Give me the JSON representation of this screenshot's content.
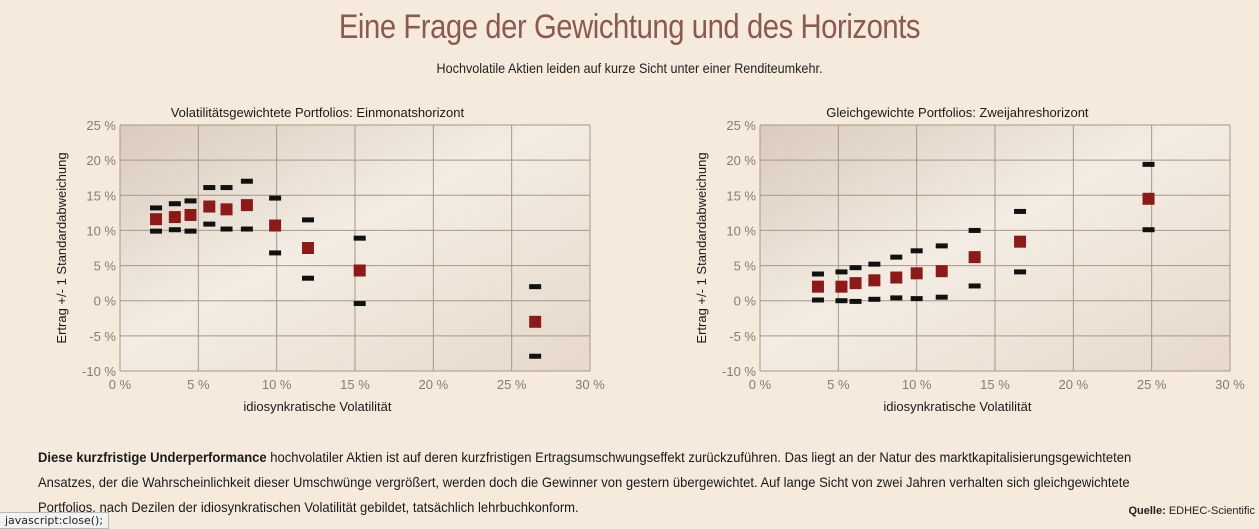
{
  "header": {
    "title": "Eine Frage der Gewichtung und des Horizonts",
    "subtitle": "Hochvolatile Aktien leiden auf kurze Sicht unter einer Renditeumkehr."
  },
  "colors": {
    "marker": "#8b1a1a",
    "whisker": "#111111",
    "title": "#8a5a52",
    "background": "#f6eadc"
  },
  "chart_data": [
    {
      "type": "scatter",
      "title": "Volatilitätsgewichtete Portfolios: Einmonatshorizont",
      "xlabel": "idiosynkratische Volatilität",
      "ylabel": "Ertrag +/- 1 Standardabweichung",
      "xlim": [
        0,
        30
      ],
      "ylim": [
        -10,
        25
      ],
      "xticks": [
        "0 %",
        "5 %",
        "10 %",
        "15 %",
        "20 %",
        "25 %",
        "30 %"
      ],
      "yticks": [
        "25 %",
        "20 %",
        "15 %",
        "10 %",
        "5 %",
        "0 %",
        "-5 %",
        "-10 %"
      ],
      "grid": true,
      "points": [
        {
          "x": 2.3,
          "y": 11.6,
          "low": 9.9,
          "high": 13.2
        },
        {
          "x": 3.5,
          "y": 11.9,
          "low": 10.1,
          "high": 13.8
        },
        {
          "x": 4.5,
          "y": 12.2,
          "low": 9.9,
          "high": 14.2
        },
        {
          "x": 5.7,
          "y": 13.4,
          "low": 10.9,
          "high": 16.1
        },
        {
          "x": 6.8,
          "y": 13.0,
          "low": 10.2,
          "high": 16.1
        },
        {
          "x": 8.1,
          "y": 13.6,
          "low": 10.2,
          "high": 17.0
        },
        {
          "x": 9.9,
          "y": 10.7,
          "low": 6.8,
          "high": 14.6
        },
        {
          "x": 12.0,
          "y": 7.5,
          "low": 3.2,
          "high": 11.5
        },
        {
          "x": 15.3,
          "y": 4.3,
          "low": -0.4,
          "high": 8.9
        },
        {
          "x": 26.5,
          "y": -3.0,
          "low": -7.9,
          "high": 2.0
        }
      ]
    },
    {
      "type": "scatter",
      "title": "Gleichgewichte Portfolios: Zweijahreshorizont",
      "xlabel": "idiosynkratische Volatilität",
      "ylabel": "Ertrag +/- 1 Standardabweichung",
      "xlim": [
        0,
        30
      ],
      "ylim": [
        -10,
        25
      ],
      "xticks": [
        "0 %",
        "5 %",
        "10 %",
        "15 %",
        "20 %",
        "25 %",
        "30 %"
      ],
      "yticks": [
        "25 %",
        "20 %",
        "15 %",
        "10 %",
        "5 %",
        "0 %",
        "-5 %",
        "-10 %"
      ],
      "grid": true,
      "points": [
        {
          "x": 3.7,
          "y": 2.0,
          "low": 0.1,
          "high": 3.8
        },
        {
          "x": 5.2,
          "y": 2.0,
          "low": 0.0,
          "high": 4.1
        },
        {
          "x": 6.1,
          "y": 2.5,
          "low": -0.1,
          "high": 4.7
        },
        {
          "x": 7.3,
          "y": 2.9,
          "low": 0.2,
          "high": 5.2
        },
        {
          "x": 8.7,
          "y": 3.3,
          "low": 0.4,
          "high": 6.2
        },
        {
          "x": 10.0,
          "y": 3.9,
          "low": 0.3,
          "high": 7.1
        },
        {
          "x": 11.6,
          "y": 4.2,
          "low": 0.5,
          "high": 7.8
        },
        {
          "x": 13.7,
          "y": 6.2,
          "low": 2.1,
          "high": 10.0
        },
        {
          "x": 16.6,
          "y": 8.4,
          "low": 4.1,
          "high": 12.7
        },
        {
          "x": 24.8,
          "y": 14.5,
          "low": 10.1,
          "high": 19.4
        }
      ]
    }
  ],
  "body": {
    "lead": "Diese kurzfristige Underperformance",
    "text_line1": " hochvolatiler Aktien ist auf deren kurzfristigen Ertragsumschwungseffekt zurückzuführen. Das liegt an der Natur des marktkapitalisierungsgewichteten",
    "text_line2": "Ansatzes, der die Wahrscheinlichkeit dieser Umschwünge vergrößert, werden doch die Gewinner von gestern übergewichtet. Auf lange Sicht von zwei Jahren verhalten sich gleichgewichtete",
    "text_line3": "Portfolios, nach Dezilen der idiosynkratischen Volatilität gebildet, tatsächlich lehrbuchkonform."
  },
  "source": {
    "label": "Quelle:",
    "value": "EDHEC-Scientific"
  },
  "statusbar": {
    "text": "javascript:close();"
  }
}
